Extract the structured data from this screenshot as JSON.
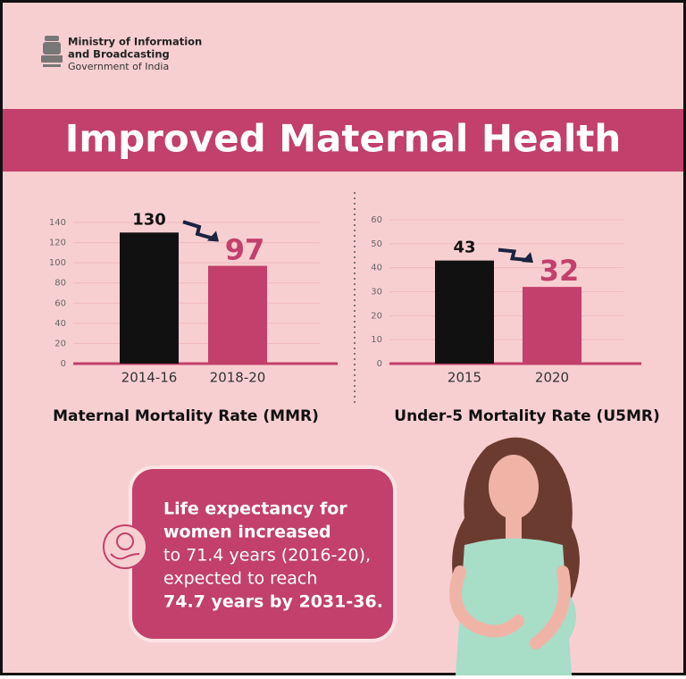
{
  "header": {
    "ministry_line1": "Ministry of Information",
    "ministry_line2": "and Broadcasting",
    "government": "Government of India"
  },
  "title": "Improved Maternal Health",
  "chart_data": [
    {
      "type": "bar",
      "title": "Maternal Mortality Rate (MMR)",
      "categories": [
        "2014-16",
        "2018-20"
      ],
      "values": [
        130,
        97
      ],
      "colors": [
        "#111111",
        "#c2406b"
      ],
      "ylim": [
        0,
        140
      ],
      "yticks": [
        0,
        20,
        40,
        60,
        80,
        100,
        120,
        140
      ],
      "grid": true
    },
    {
      "type": "bar",
      "title": "Under-5 Mortality Rate (U5MR)",
      "categories": [
        "2015",
        "2020"
      ],
      "values": [
        43,
        32
      ],
      "colors": [
        "#111111",
        "#c2406b"
      ],
      "ylim": [
        0,
        60
      ],
      "yticks": [
        0,
        10,
        20,
        30,
        40,
        50,
        60
      ],
      "grid": true
    }
  ],
  "info_box": {
    "lines": [
      "Life expectancy for",
      "women increased",
      "to 71.4 years (2016-20),",
      "expected to reach",
      "74.7 years by 2031-36."
    ]
  }
}
